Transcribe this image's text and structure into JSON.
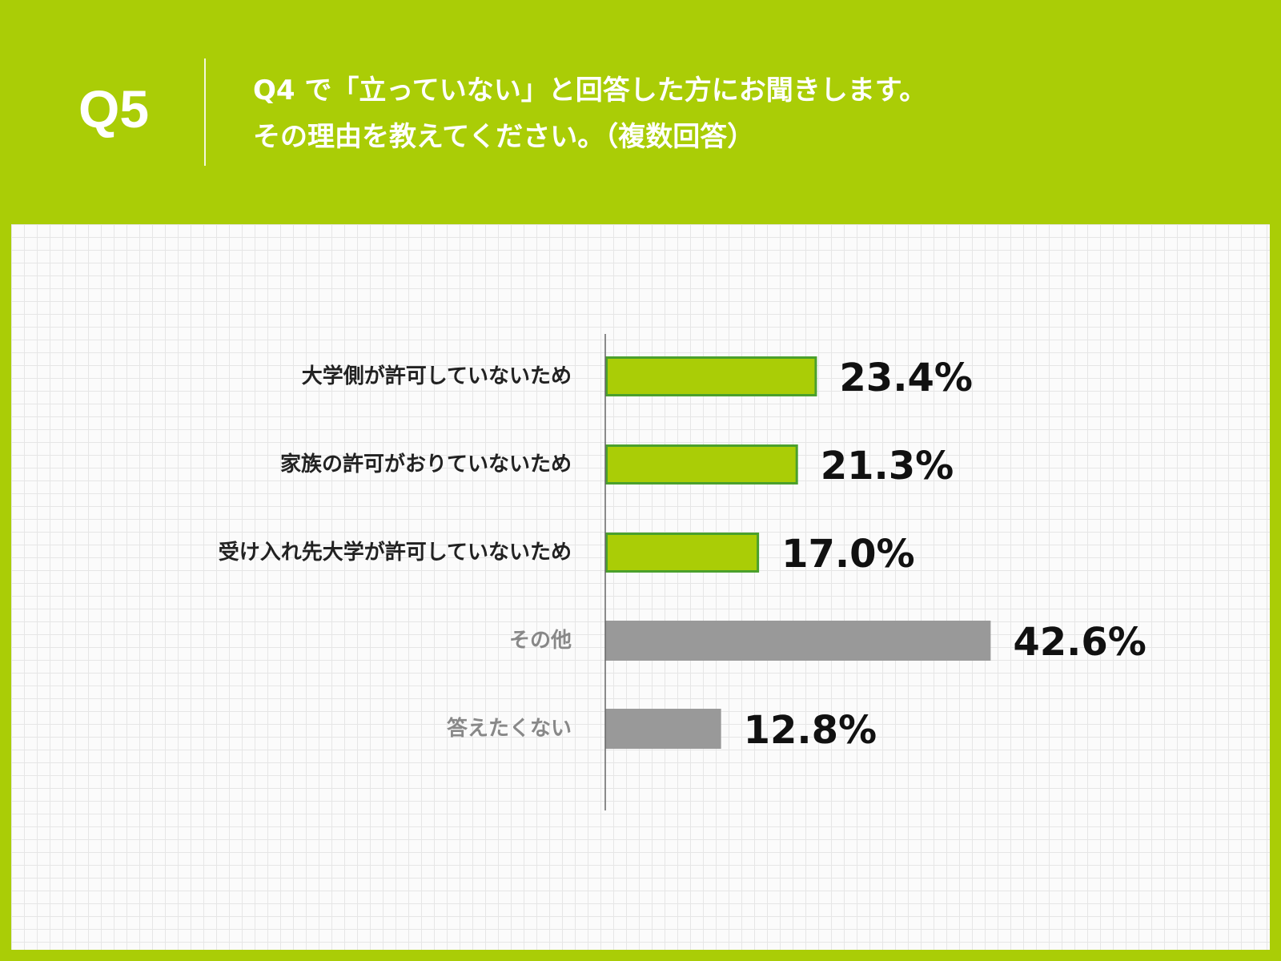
{
  "header": {
    "q_label": "Q5",
    "question_line1": "Q4 で「立っていない」と回答した方にお聞きします。",
    "question_line2": "その理由を教えてください。（複数回答）"
  },
  "colors": {
    "background": "#aacd06",
    "bar_green_fill": "#aacd06",
    "bar_green_border": "#4aa02c",
    "bar_gray": "#999999",
    "label_dark": "#222222",
    "label_gray": "#888888"
  },
  "chart_data": {
    "type": "bar",
    "orientation": "horizontal",
    "categories": [
      "大学側が許可していないため",
      "家族の許可がおりていないため",
      "受け入れ先大学が許可していないため",
      "その他",
      "答えたくない"
    ],
    "values": [
      23.4,
      21.3,
      17.0,
      42.6,
      12.8
    ],
    "value_labels": [
      "23.4%",
      "21.3%",
      "17.0%",
      "42.6%",
      "12.8%"
    ],
    "unit": "%",
    "bar_style": [
      "green",
      "green",
      "green",
      "gray",
      "gray"
    ],
    "xlim": [
      0,
      100
    ],
    "grid": false
  }
}
